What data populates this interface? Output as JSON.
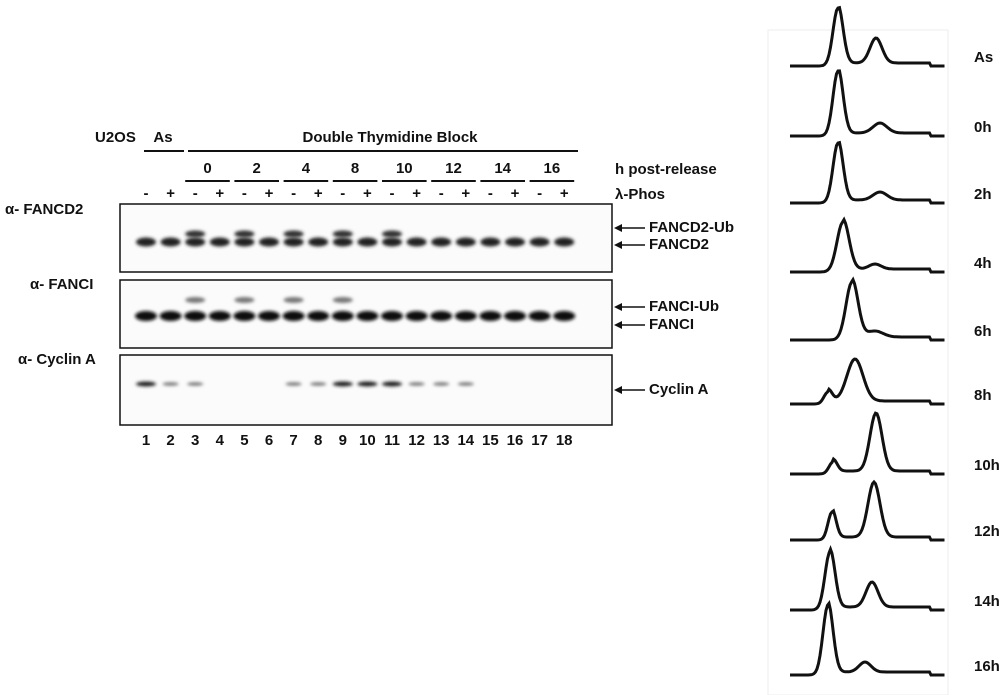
{
  "figure": {
    "cell_line": "U2OS",
    "async_label": "As",
    "block_label": "Double Thymidine Block",
    "time_groups": [
      "0",
      "2",
      "4",
      "8",
      "10",
      "12",
      "14",
      "16"
    ],
    "time_row_label": "h post-release",
    "treatment_row_label": "λ-Phos",
    "treatments": [
      "-",
      "+",
      "-",
      "+",
      "-",
      "+",
      "-",
      "+",
      "-",
      "+",
      "-",
      "+",
      "-",
      "+",
      "-",
      "+",
      "-",
      "+"
    ],
    "lane_numbers": [
      "1",
      "2",
      "3",
      "4",
      "5",
      "6",
      "7",
      "8",
      "9",
      "10",
      "11",
      "12",
      "13",
      "14",
      "15",
      "16",
      "17",
      "18"
    ],
    "blots": [
      {
        "antibody": "α- FANCD2",
        "bands": [
          "FANCD2-Ub",
          "FANCD2"
        ]
      },
      {
        "antibody": "α- FANCI",
        "bands": [
          "FANCI-Ub",
          "FANCI"
        ]
      },
      {
        "antibody": "α- Cyclin A",
        "bands": [
          "Cyclin A"
        ]
      }
    ],
    "flow_labels": [
      "As",
      "0h",
      "2h",
      "4h",
      "6h",
      "8h",
      "10h",
      "12h",
      "14h",
      "16h"
    ]
  }
}
